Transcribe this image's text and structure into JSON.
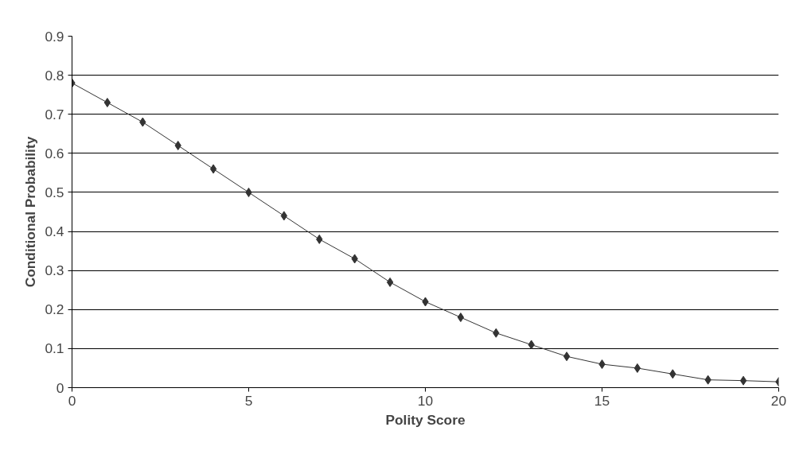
{
  "chart_data": {
    "type": "line",
    "xlabel": "Polity Score",
    "ylabel": "Conditional Probability",
    "x": [
      0,
      1,
      2,
      3,
      4,
      5,
      6,
      7,
      8,
      9,
      10,
      11,
      12,
      13,
      14,
      15,
      16,
      17,
      18,
      19,
      20
    ],
    "series": [
      {
        "color": "#333333",
        "values": [
          0.78,
          0.73,
          0.68,
          0.62,
          0.56,
          0.5,
          0.44,
          0.38,
          0.33,
          0.27,
          0.22,
          0.18,
          0.14,
          0.11,
          0.08,
          0.06,
          0.05,
          0.035,
          0.02,
          0.018,
          0.015
        ]
      }
    ],
    "xlim": [
      0,
      20
    ],
    "xticks": [
      0,
      5,
      10,
      15,
      20
    ],
    "ylim": [
      0,
      0.9
    ],
    "yticks": [
      0,
      0.1,
      0.2,
      0.3,
      0.4,
      0.5,
      0.6,
      0.7,
      0.8,
      0.9
    ],
    "grid": "y",
    "marker": "diamond",
    "line_style": "solid"
  }
}
